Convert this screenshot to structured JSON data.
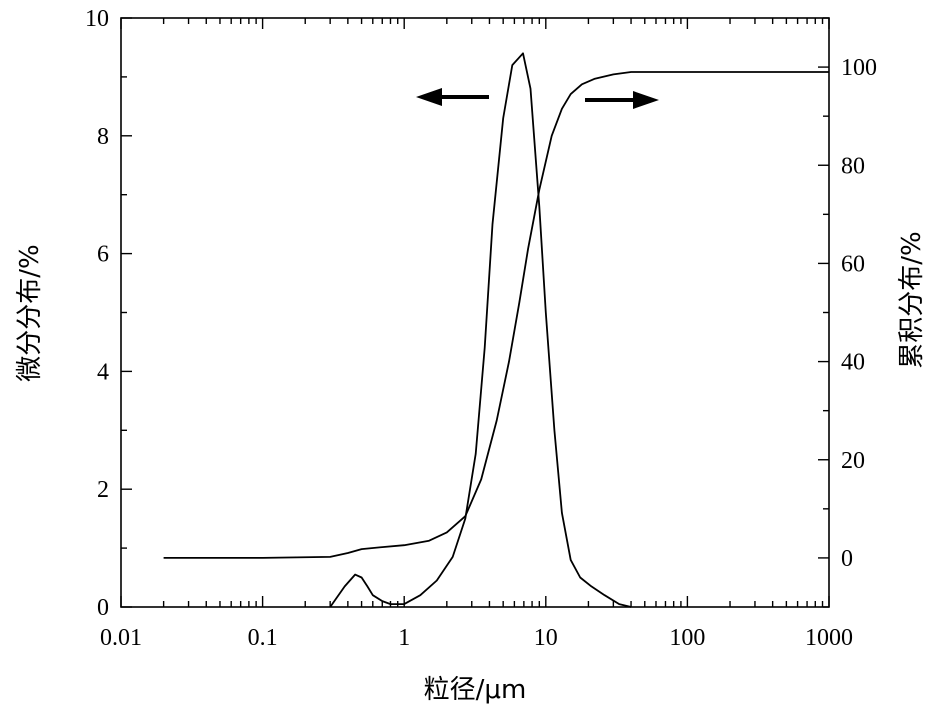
{
  "chart_data": {
    "type": "line",
    "xlabel": "粒径/μm",
    "ylabel_left": "微分分布/%",
    "ylabel_right": "累积分布/%",
    "x_scale": "log",
    "xlim": [
      0.01,
      1000
    ],
    "ylim_left": [
      0,
      10
    ],
    "ylim_right": [
      -10,
      110
    ],
    "x_ticks": [
      0.01,
      0.1,
      1,
      10,
      100,
      1000
    ],
    "x_tick_labels": [
      "0.01",
      "0.1",
      "1",
      "10",
      "100",
      "1000"
    ],
    "y_left_ticks": [
      0,
      2,
      4,
      6,
      8,
      10
    ],
    "y_left_tick_labels": [
      "0",
      "2",
      "4",
      "6",
      "8",
      "10"
    ],
    "y_right_ticks": [
      0,
      20,
      40,
      60,
      80,
      100
    ],
    "y_right_tick_labels": [
      "0",
      "20",
      "40",
      "60",
      "80",
      "100"
    ],
    "grid": false,
    "series": [
      {
        "axis": "left",
        "x": [
          0.3,
          0.38,
          0.45,
          0.5,
          0.55,
          0.6,
          0.7,
          0.8,
          1.0,
          1.3,
          1.7,
          2.2,
          2.7,
          3.2,
          3.7,
          4.2,
          5.0,
          5.8,
          6.9,
          7.8,
          9.0,
          10.0,
          11.5,
          13.0,
          15.0,
          17.5,
          21.0,
          26.0,
          33.0,
          40.0
        ],
        "y": [
          0.0,
          0.35,
          0.55,
          0.5,
          0.35,
          0.2,
          0.1,
          0.05,
          0.05,
          0.2,
          0.45,
          0.85,
          1.5,
          2.6,
          4.4,
          6.5,
          8.3,
          9.2,
          9.4,
          8.8,
          6.8,
          5.0,
          3.0,
          1.6,
          0.8,
          0.5,
          0.35,
          0.2,
          0.05,
          0.0
        ]
      },
      {
        "axis": "right",
        "x": [
          0.02,
          0.1,
          0.3,
          0.4,
          0.5,
          0.7,
          1.0,
          1.5,
          2.0,
          2.7,
          3.5,
          4.5,
          5.5,
          6.5,
          7.5,
          9.0,
          11.0,
          13.0,
          15.0,
          18.0,
          22.0,
          30.0,
          40.0,
          100.0,
          1000.0
        ],
        "y": [
          0.0,
          0.0,
          0.2,
          1.0,
          1.8,
          2.2,
          2.6,
          3.5,
          5.2,
          8.5,
          16.0,
          28.0,
          40.0,
          52.0,
          63.0,
          75.0,
          86.0,
          91.5,
          94.5,
          96.5,
          97.6,
          98.5,
          99.0,
          99.0,
          99.0
        ]
      }
    ]
  }
}
